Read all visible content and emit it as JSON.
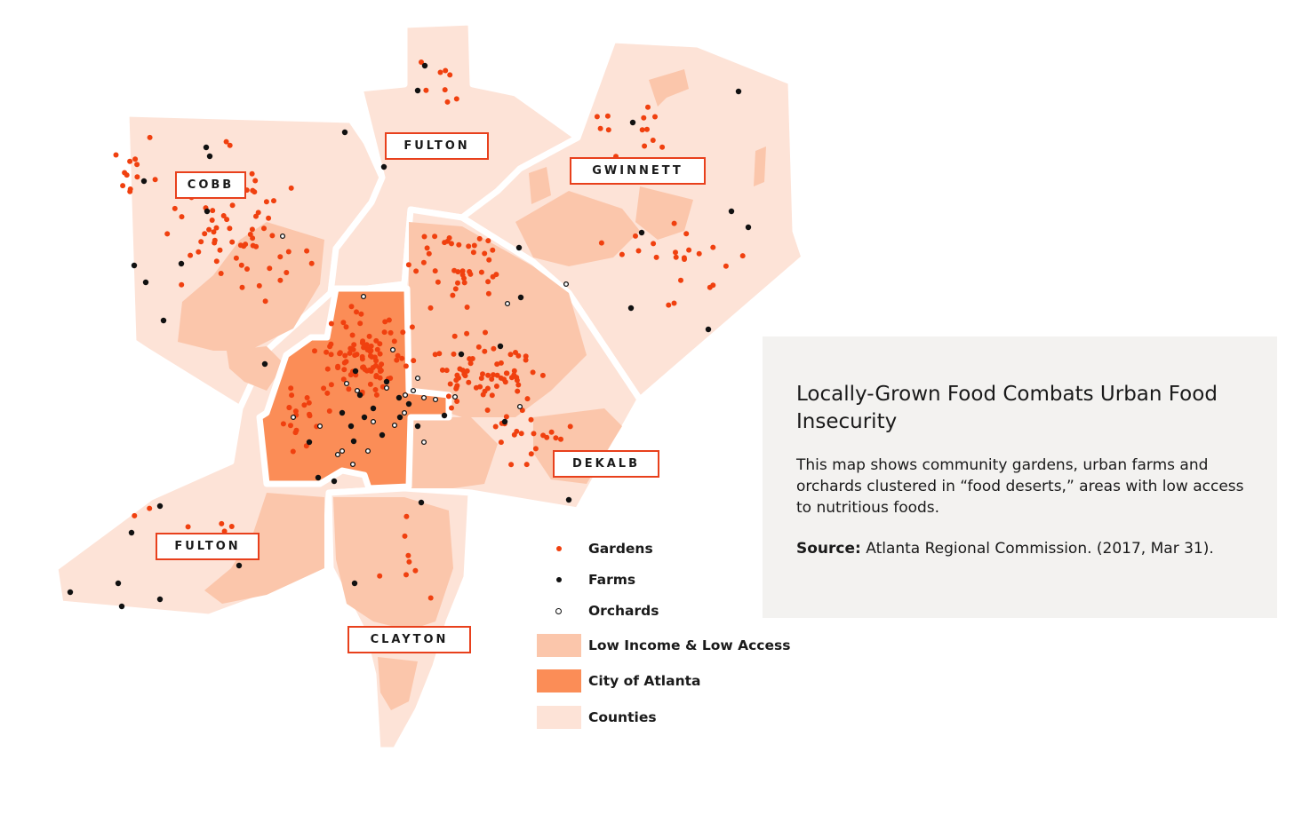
{
  "map": {
    "county_labels": [
      {
        "id": "cobb",
        "text": "COBB"
      },
      {
        "id": "fulton-north",
        "text": "FULTON"
      },
      {
        "id": "gwinnett",
        "text": "GWINNETT"
      },
      {
        "id": "dekalb",
        "text": "DEKALB"
      },
      {
        "id": "fulton-south",
        "text": "FULTON"
      },
      {
        "id": "clayton",
        "text": "CLAYTON"
      }
    ]
  },
  "legend": {
    "gardens": "Gardens",
    "farms": "Farms",
    "orchards": "Orchards",
    "low_income": "Low Income & Low Access",
    "city": "City of Atlanta",
    "counties": "Counties"
  },
  "info": {
    "title": "Locally-Grown Food Combats Urban Food Insecurity",
    "description": "This map shows community gardens, urban farms and orchards clustered in “food deserts,” areas with low access to nutritious foods.",
    "source_label": "Source:",
    "source_text": " Atlanta Regional Commission. (2017, Mar 31)."
  },
  "colors": {
    "county": "#fde3d7",
    "low_income": "#fbc6ab",
    "city": "#fb8d57",
    "garden": "#f0400f",
    "farm": "#111111",
    "orchard_stroke": "#111111",
    "border": "#e8401c"
  }
}
